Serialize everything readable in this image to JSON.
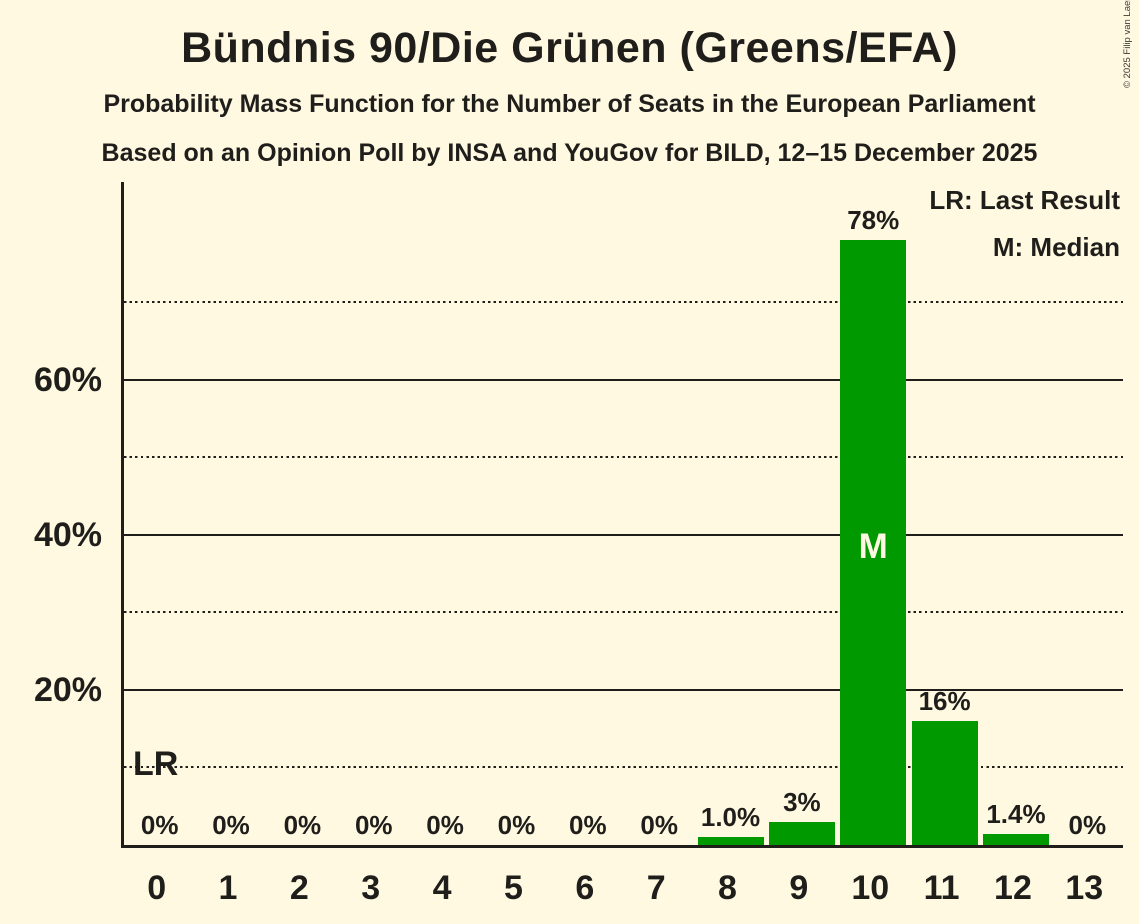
{
  "header": {
    "title": "Bündnis 90/Die Grünen (Greens/EFA)",
    "subtitle": "Probability Mass Function for the Number of Seats in the European Parliament",
    "source_line": "Based on an Opinion Poll by INSA and YouGov for BILD, 12–15 December 2025"
  },
  "copyright": "© 2025 Filip van Laenen",
  "legend": {
    "last_result": "LR: Last Result",
    "median": "M: Median"
  },
  "colors": {
    "background": "#FFF9E2",
    "bar": "#009900",
    "text": "#1F1E1B",
    "median_marker_text": "#FFF9E2"
  },
  "chart_data": {
    "type": "bar",
    "title": "Bündnis 90/Die Grünen (Greens/EFA)",
    "xlabel": "",
    "ylabel": "",
    "categories": [
      "0",
      "1",
      "2",
      "3",
      "4",
      "5",
      "6",
      "7",
      "8",
      "9",
      "10",
      "11",
      "12",
      "13"
    ],
    "values": [
      0,
      0,
      0,
      0,
      0,
      0,
      0,
      0,
      1.0,
      3,
      78,
      16,
      1.4,
      0
    ],
    "value_labels": [
      "0%",
      "0%",
      "0%",
      "0%",
      "0%",
      "0%",
      "0%",
      "0%",
      "1.0%",
      "3%",
      "78%",
      "16%",
      "1.4%",
      "0%"
    ],
    "y_tick_labels": [
      "20%",
      "40%",
      "60%"
    ],
    "y_tick_values": [
      20,
      40,
      60
    ],
    "solid_gridlines": [
      20,
      40,
      60
    ],
    "dotted_gridlines": [
      10,
      30,
      50,
      70
    ],
    "ylim": [
      0,
      85.5
    ],
    "grid": "horizontal",
    "legend_position": "top-right",
    "median_category": "10",
    "median_marker": "M",
    "last_result_marker": "LR"
  }
}
